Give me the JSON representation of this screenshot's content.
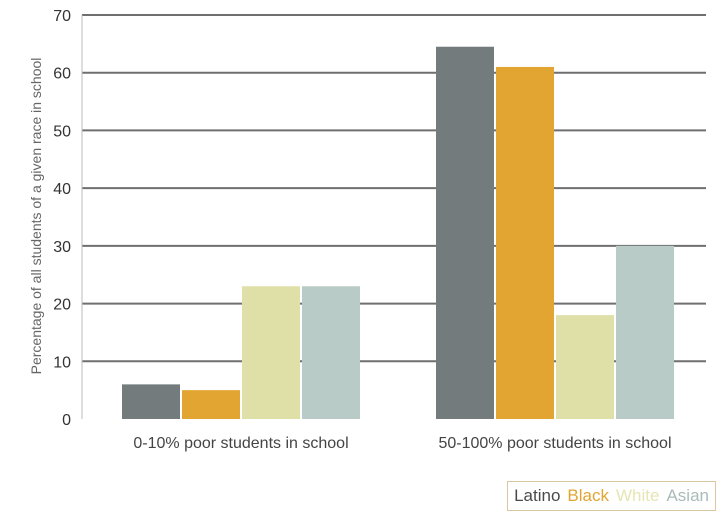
{
  "chart_data": {
    "type": "bar",
    "title": "",
    "xlabel": "",
    "ylabel": "Percentage of all students of a given race in school",
    "ylim": [
      0,
      70
    ],
    "yticks": [
      0,
      10,
      20,
      30,
      40,
      50,
      60,
      70
    ],
    "grid": true,
    "legend_position": "bottom-right",
    "categories": [
      "0-10% poor students in school",
      "50-100% poor students in school"
    ],
    "series": [
      {
        "name": "Latino",
        "color": "#737b7d",
        "values": [
          6,
          64.5
        ]
      },
      {
        "name": "Black",
        "color": "#e3a531",
        "values": [
          5,
          61
        ]
      },
      {
        "name": "White",
        "color": "#dfdfa8",
        "values": [
          23,
          18
        ]
      },
      {
        "name": "Asian",
        "color": "#b9cbc6",
        "values": [
          23,
          30
        ]
      }
    ]
  }
}
